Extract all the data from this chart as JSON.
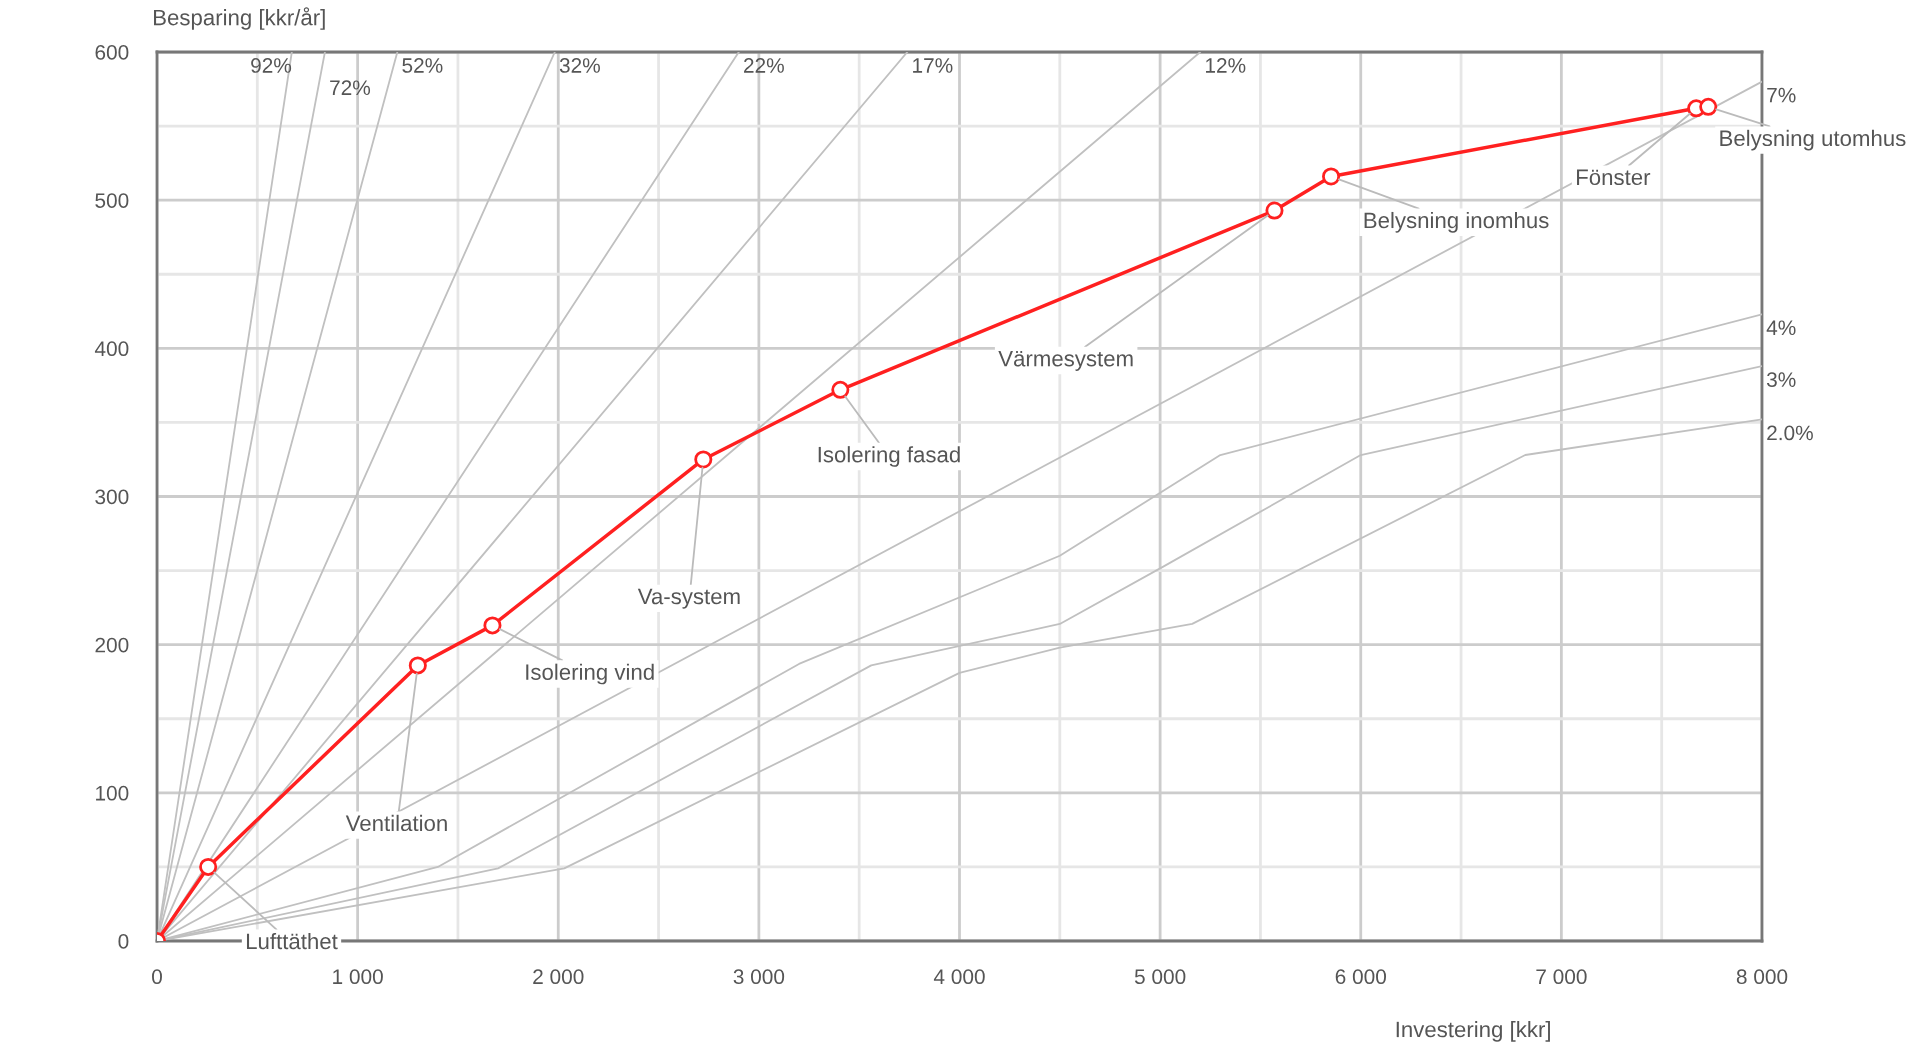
{
  "chart_data": {
    "type": "line",
    "xlabel": "Investering [kkr]",
    "ylabel": "Besparing [kkr/år]",
    "xlim": [
      0,
      8000
    ],
    "ylim": [
      0,
      600
    ],
    "xticks": [
      0,
      {
        "value": 1000,
        "label": "1 000"
      },
      {
        "value": 2000,
        "label": "2 000"
      },
      {
        "value": 3000,
        "label": "3 000"
      },
      {
        "value": 4000,
        "label": "4 000"
      },
      {
        "value": 5000,
        "label": "5 000"
      },
      {
        "value": 6000,
        "label": "6 000"
      },
      {
        "value": 7000,
        "label": "7 000"
      },
      {
        "value": 8000,
        "label": "8 000"
      }
    ],
    "yticks": [
      0,
      100,
      200,
      300,
      400,
      500,
      600
    ],
    "grid": true,
    "legend": false,
    "series": [
      {
        "name": "92%",
        "color": "#c0c0c0",
        "marker": "none",
        "x": [
          0,
          672
        ],
        "values": [
          0,
          600
        ]
      },
      {
        "name": "72%",
        "color": "#c0c0c0",
        "marker": "none",
        "x": [
          0,
          837
        ],
        "values": [
          0,
          600
        ]
      },
      {
        "name": "52%",
        "color": "#c0c0c0",
        "marker": "none",
        "x": [
          0,
          1198
        ],
        "values": [
          0,
          600
        ]
      },
      {
        "name": "32%",
        "color": "#c0c0c0",
        "marker": "none",
        "x": [
          0,
          1983
        ],
        "values": [
          0,
          600
        ]
      },
      {
        "name": "22%",
        "color": "#c0c0c0",
        "marker": "none",
        "x": [
          0,
          2900
        ],
        "values": [
          0,
          600
        ]
      },
      {
        "name": "17%",
        "color": "#c0c0c0",
        "marker": "none",
        "x": [
          0,
          3740
        ],
        "values": [
          0,
          600
        ]
      },
      {
        "name": "12%",
        "color": "#c0c0c0",
        "marker": "none",
        "x": [
          0,
          5200
        ],
        "values": [
          0,
          600
        ]
      },
      {
        "name": "7%",
        "color": "#c0c0c0",
        "marker": "none",
        "x": [
          0,
          8000
        ],
        "values": [
          0,
          580
        ]
      },
      {
        "name": "4%",
        "color": "#c0c0c0",
        "marker": "none",
        "x": [
          0,
          1400,
          3200,
          4500,
          5300,
          8000
        ],
        "values": [
          0,
          50,
          187,
          260,
          328,
          423
        ]
      },
      {
        "name": "3%",
        "color": "#c0c0c0",
        "marker": "none",
        "x": [
          0,
          1700,
          3560,
          4500,
          5020,
          6000,
          8000
        ],
        "values": [
          0,
          49,
          186,
          214,
          253,
          328,
          388
        ]
      },
      {
        "name": "2.0%",
        "color": "#c0c0c0",
        "marker": "none",
        "x": [
          0,
          2030,
          4000,
          4500,
          5160,
          6820,
          8000
        ],
        "values": [
          0,
          49,
          181,
          198,
          214,
          328,
          352
        ]
      },
      {
        "color": "#ff2020",
        "marker": "circle",
        "x": [
          0,
          255,
          1300,
          1672,
          2723,
          3406,
          5570,
          5852,
          7672,
          7732
        ],
        "values": [
          0,
          50,
          186,
          213,
          325,
          372,
          493,
          516,
          562,
          563
        ]
      }
    ],
    "annotations": [
      {
        "text": "Lufttäthet",
        "x": 255,
        "y": 50
      },
      {
        "text": "Ventilation",
        "x": 1300,
        "y": 186
      },
      {
        "text": "Isolering vind",
        "x": 1672,
        "y": 213
      },
      {
        "text": "Va-system",
        "x": 2723,
        "y": 325
      },
      {
        "text": "Isolering fasad",
        "x": 3406,
        "y": 372
      },
      {
        "text": "Värmesystem",
        "x": 5570,
        "y": 493
      },
      {
        "text": "Belysning inomhus",
        "x": 5852,
        "y": 516
      },
      {
        "text": "Fönster",
        "x": 7672,
        "y": 562
      },
      {
        "text": "Belysning utomhus",
        "x": 7732,
        "y": 563
      }
    ]
  }
}
